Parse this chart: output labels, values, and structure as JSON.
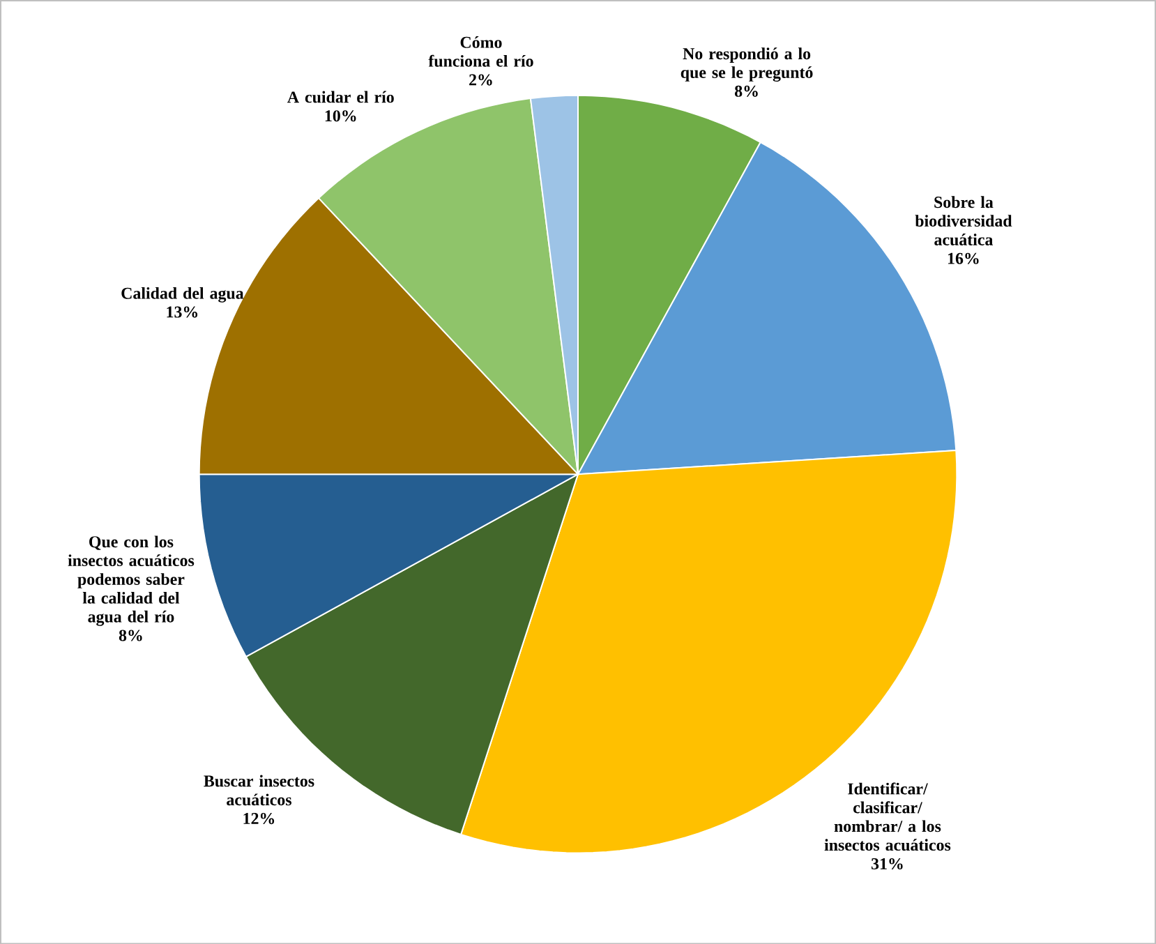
{
  "chart_data": {
    "type": "pie",
    "categories": [
      "No respondió a lo que se le preguntó",
      "Sobre la biodiversidad acuática",
      "Identificar/ clasificar/ nombrar/ a los insectos acuáticos",
      "Buscar insectos acuáticos",
      "Que con los insectos acuáticos podemos saber la calidad del agua del río",
      "Calidad del agua",
      "A cuidar el río",
      "Cómo funciona el río"
    ],
    "values": [
      8,
      16,
      31,
      12,
      8,
      13,
      10,
      2
    ],
    "value_labels": [
      "8%",
      "16%",
      "31%",
      "12%",
      "8%",
      "13%",
      "10%",
      "2%"
    ],
    "colors": [
      "#70ad47",
      "#5b9bd5",
      "#ffc000",
      "#43682b",
      "#255e91",
      "#9e7000",
      "#8fc46a",
      "#9dc3e6"
    ]
  }
}
